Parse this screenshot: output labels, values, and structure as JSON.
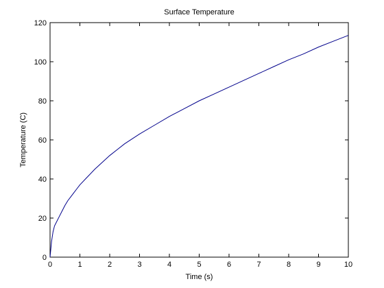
{
  "chart_data": {
    "type": "line",
    "title": "Surface Temperature",
    "xlabel": "Time (s)",
    "ylabel": "Temperature (C)",
    "xlim": [
      0,
      10
    ],
    "ylim": [
      0,
      120
    ],
    "xticks": [
      0,
      1,
      2,
      3,
      4,
      5,
      6,
      7,
      8,
      9,
      10
    ],
    "yticks": [
      0,
      20,
      40,
      60,
      80,
      100,
      120
    ],
    "grid": false,
    "series": [
      {
        "color": "#00008b",
        "x": [
          0,
          0.05,
          0.1,
          0.15,
          0.2,
          0.3,
          0.4,
          0.5,
          0.6,
          0.7,
          0.8,
          0.9,
          1,
          1.25,
          1.5,
          1.75,
          2,
          2.25,
          2.5,
          2.75,
          3,
          3.5,
          4,
          4.5,
          5,
          5.5,
          6,
          6.5,
          7,
          7.5,
          8,
          8.5,
          9,
          9.5,
          10
        ],
        "y": [
          0,
          8,
          13,
          16,
          17.5,
          20.5,
          23.5,
          26.5,
          29,
          31,
          33,
          35,
          37,
          41,
          45,
          48.5,
          52,
          55,
          58,
          60.5,
          63,
          67.5,
          72,
          76,
          80,
          83.5,
          87,
          90.5,
          94,
          97.5,
          101,
          104,
          107.5,
          110.5,
          113.5
        ]
      }
    ]
  }
}
